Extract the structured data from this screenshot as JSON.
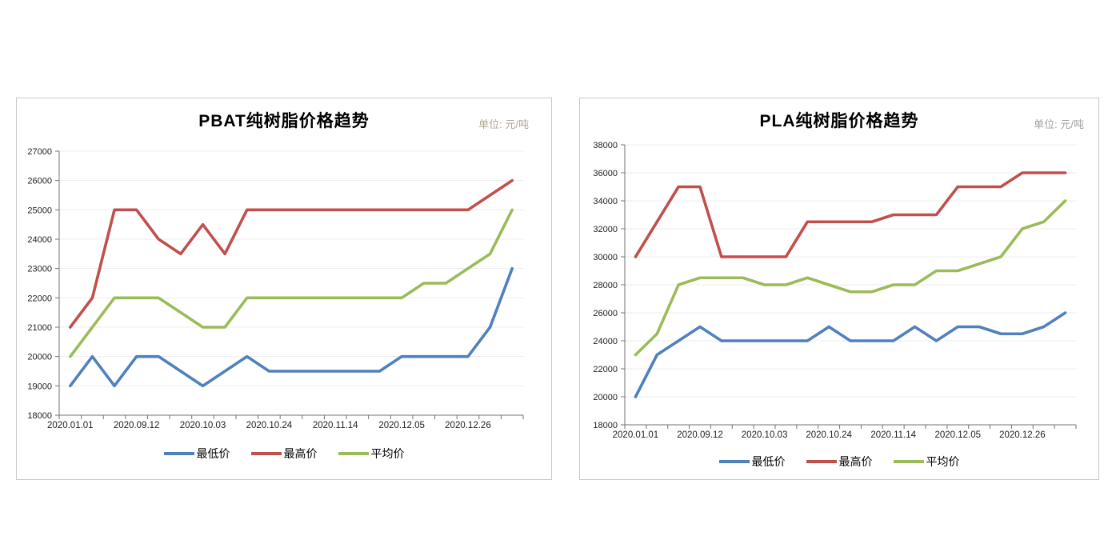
{
  "chart_data": [
    {
      "type": "line",
      "title": "PBAT纯树脂价格趋势",
      "unit_label": "单位: 元/吨",
      "unit_color": "#b3a493",
      "num_points": 21,
      "categories_visible": [
        "2020.01.01",
        "2020.09.12",
        "2020.10.03",
        "2020.10.24",
        "2020.11.14",
        "2020.12.05",
        "2020.12.26"
      ],
      "visible_label_indices": [
        0,
        3,
        6,
        9,
        12,
        15,
        18
      ],
      "ylim": [
        18000,
        27000
      ],
      "ytick_step": 1000,
      "grid": true,
      "legend_position": "bottom",
      "series": [
        {
          "name": "最低价",
          "color": "#4F81BD",
          "values": [
            19000,
            20000,
            19000,
            20000,
            20000,
            19500,
            19000,
            19500,
            20000,
            19500,
            19500,
            19500,
            19500,
            19500,
            19500,
            20000,
            20000,
            20000,
            20000,
            21000,
            23000
          ]
        },
        {
          "name": "最高价",
          "color": "#C0504D",
          "values": [
            21000,
            22000,
            25000,
            25000,
            24000,
            23500,
            24500,
            23500,
            25000,
            25000,
            25000,
            25000,
            25000,
            25000,
            25000,
            25000,
            25000,
            25000,
            25000,
            25500,
            26000
          ]
        },
        {
          "name": "平均价",
          "color": "#9BBB59",
          "values": [
            20000,
            21000,
            22000,
            22000,
            22000,
            21500,
            21000,
            21000,
            22000,
            22000,
            22000,
            22000,
            22000,
            22000,
            22000,
            22000,
            22500,
            22500,
            23000,
            23500,
            25000
          ]
        }
      ]
    },
    {
      "type": "line",
      "title": "PLA纯树脂价格趋势",
      "unit_label": "单位: 元/吨",
      "unit_color": "#a09fa6",
      "num_points": 21,
      "categories_visible": [
        "2020.01.01",
        "2020.09.12",
        "2020.10.03",
        "2020.10.24",
        "2020.11.14",
        "2020.12.05",
        "2020.12.26"
      ],
      "visible_label_indices": [
        0,
        3,
        6,
        9,
        12,
        15,
        18
      ],
      "ylim": [
        18000,
        38000
      ],
      "ytick_step": 2000,
      "grid": true,
      "legend_position": "bottom",
      "series": [
        {
          "name": "最低价",
          "color": "#4F81BD",
          "values": [
            20000,
            23000,
            24000,
            25000,
            24000,
            24000,
            24000,
            24000,
            24000,
            25000,
            24000,
            24000,
            24000,
            25000,
            24000,
            25000,
            25000,
            24500,
            24500,
            25000,
            26000
          ]
        },
        {
          "name": "最高价",
          "color": "#C0504D",
          "values": [
            30000,
            32500,
            35000,
            35000,
            30000,
            30000,
            30000,
            30000,
            32500,
            32500,
            32500,
            32500,
            33000,
            33000,
            33000,
            35000,
            35000,
            35000,
            36000,
            36000,
            36000
          ]
        },
        {
          "name": "平均价",
          "color": "#9BBB59",
          "values": [
            23000,
            24500,
            28000,
            28500,
            28500,
            28500,
            28000,
            28000,
            28500,
            28000,
            27500,
            27500,
            28000,
            28000,
            29000,
            29000,
            29500,
            30000,
            32000,
            32500,
            34000
          ]
        }
      ]
    }
  ],
  "style": {
    "axis_color": "#737373",
    "grid_color": "#ededed",
    "tick_label_color": "#1f1f1f"
  }
}
